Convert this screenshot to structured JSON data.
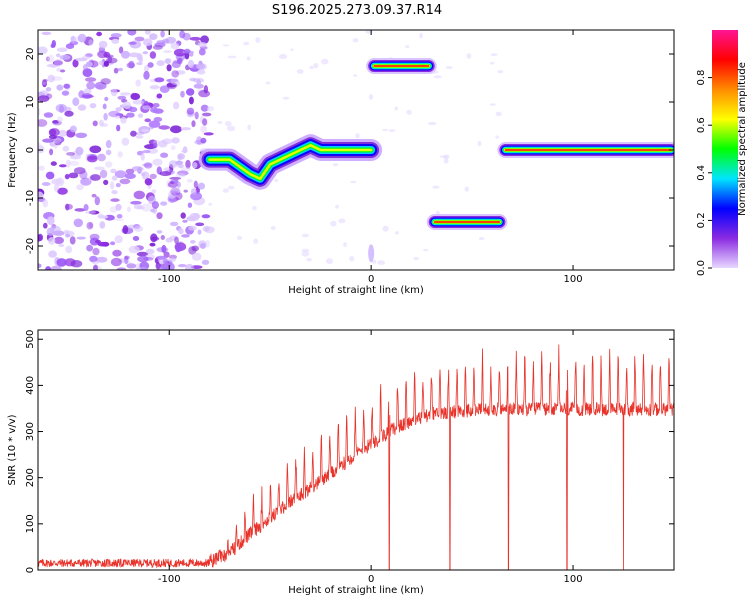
{
  "title": "S196.2025.273.09.37.R14",
  "colors": {
    "snr_line": "#e8322a",
    "spectrogram_noise": "#8a2be2",
    "frame": "#000000"
  },
  "chart_data": [
    {
      "type": "heatmap",
      "xlabel": "Height of straight line (km)",
      "ylabel": "Frequency (Hz)",
      "xlim": [
        -165,
        150
      ],
      "ylim": [
        -25,
        25
      ],
      "x_ticks": [
        -100,
        0,
        100
      ],
      "y_ticks": [
        -20,
        -10,
        0,
        10,
        20
      ],
      "colorbar": {
        "label": "Normalized spectral amplitude",
        "range": [
          0,
          1
        ],
        "ticks": [
          "0.0",
          "0.2",
          "0.4",
          "0.6",
          "0.8"
        ],
        "colormap": [
          "#e8d8ff",
          "#8a2be2",
          "#0000ff",
          "#00e5ff",
          "#00ff00",
          "#ffff00",
          "#ff8c00",
          "#ff0000",
          "#ff1493"
        ]
      },
      "regions": [
        {
          "kind": "noise",
          "x_range": [
            -165,
            -80
          ],
          "y_range": [
            -25,
            25
          ]
        },
        {
          "kind": "track",
          "x": [
            -80,
            -70,
            -60,
            -55,
            -50,
            -40,
            -30,
            -25,
            -15,
            -5,
            0
          ],
          "y": [
            -2,
            -2,
            -5,
            -6,
            -3,
            -1,
            1,
            0,
            0,
            0,
            0
          ]
        },
        {
          "kind": "band",
          "x_range": [
            0,
            30
          ],
          "freq": 17.5
        },
        {
          "kind": "band",
          "x_range": [
            30,
            65
          ],
          "freq": -15
        },
        {
          "kind": "band",
          "x_range": [
            65,
            150
          ],
          "freq": 0
        }
      ]
    },
    {
      "type": "line",
      "xlabel": "Height of straight line (km)",
      "ylabel": "SNR (10 * v/v)",
      "xlim": [
        -165,
        150
      ],
      "ylim": [
        0,
        520
      ],
      "x_ticks": [
        -100,
        0,
        100
      ],
      "y_ticks": [
        0,
        100,
        200,
        300,
        400,
        500
      ],
      "series": [
        {
          "baseline": {
            "x": [
              -165,
              -80,
              -70,
              -60,
              -50,
              -40,
              -30,
              -20,
              -10,
              0,
              10,
              20,
              30,
              40,
              60,
              80,
              100,
              120,
              150
            ],
            "y": [
              15,
              15,
              35,
              75,
              110,
              145,
              175,
              205,
              240,
              270,
              300,
              320,
              335,
              340,
              345,
              345,
              345,
              345,
              345
            ]
          },
          "peak_envelope": {
            "x": [
              -165,
              -80,
              -70,
              -60,
              -50,
              -40,
              -30,
              -20,
              -10,
              0,
              10,
              20,
              30,
              40,
              60,
              80,
              100,
              120,
              150
            ],
            "y": [
              25,
              25,
              70,
              150,
              200,
              250,
              290,
              320,
              360,
              390,
              420,
              440,
              450,
              460,
              470,
              480,
              480,
              480,
              480
            ]
          },
          "dropouts_x": [
            9,
            39,
            68,
            97,
            125
          ]
        }
      ]
    }
  ]
}
